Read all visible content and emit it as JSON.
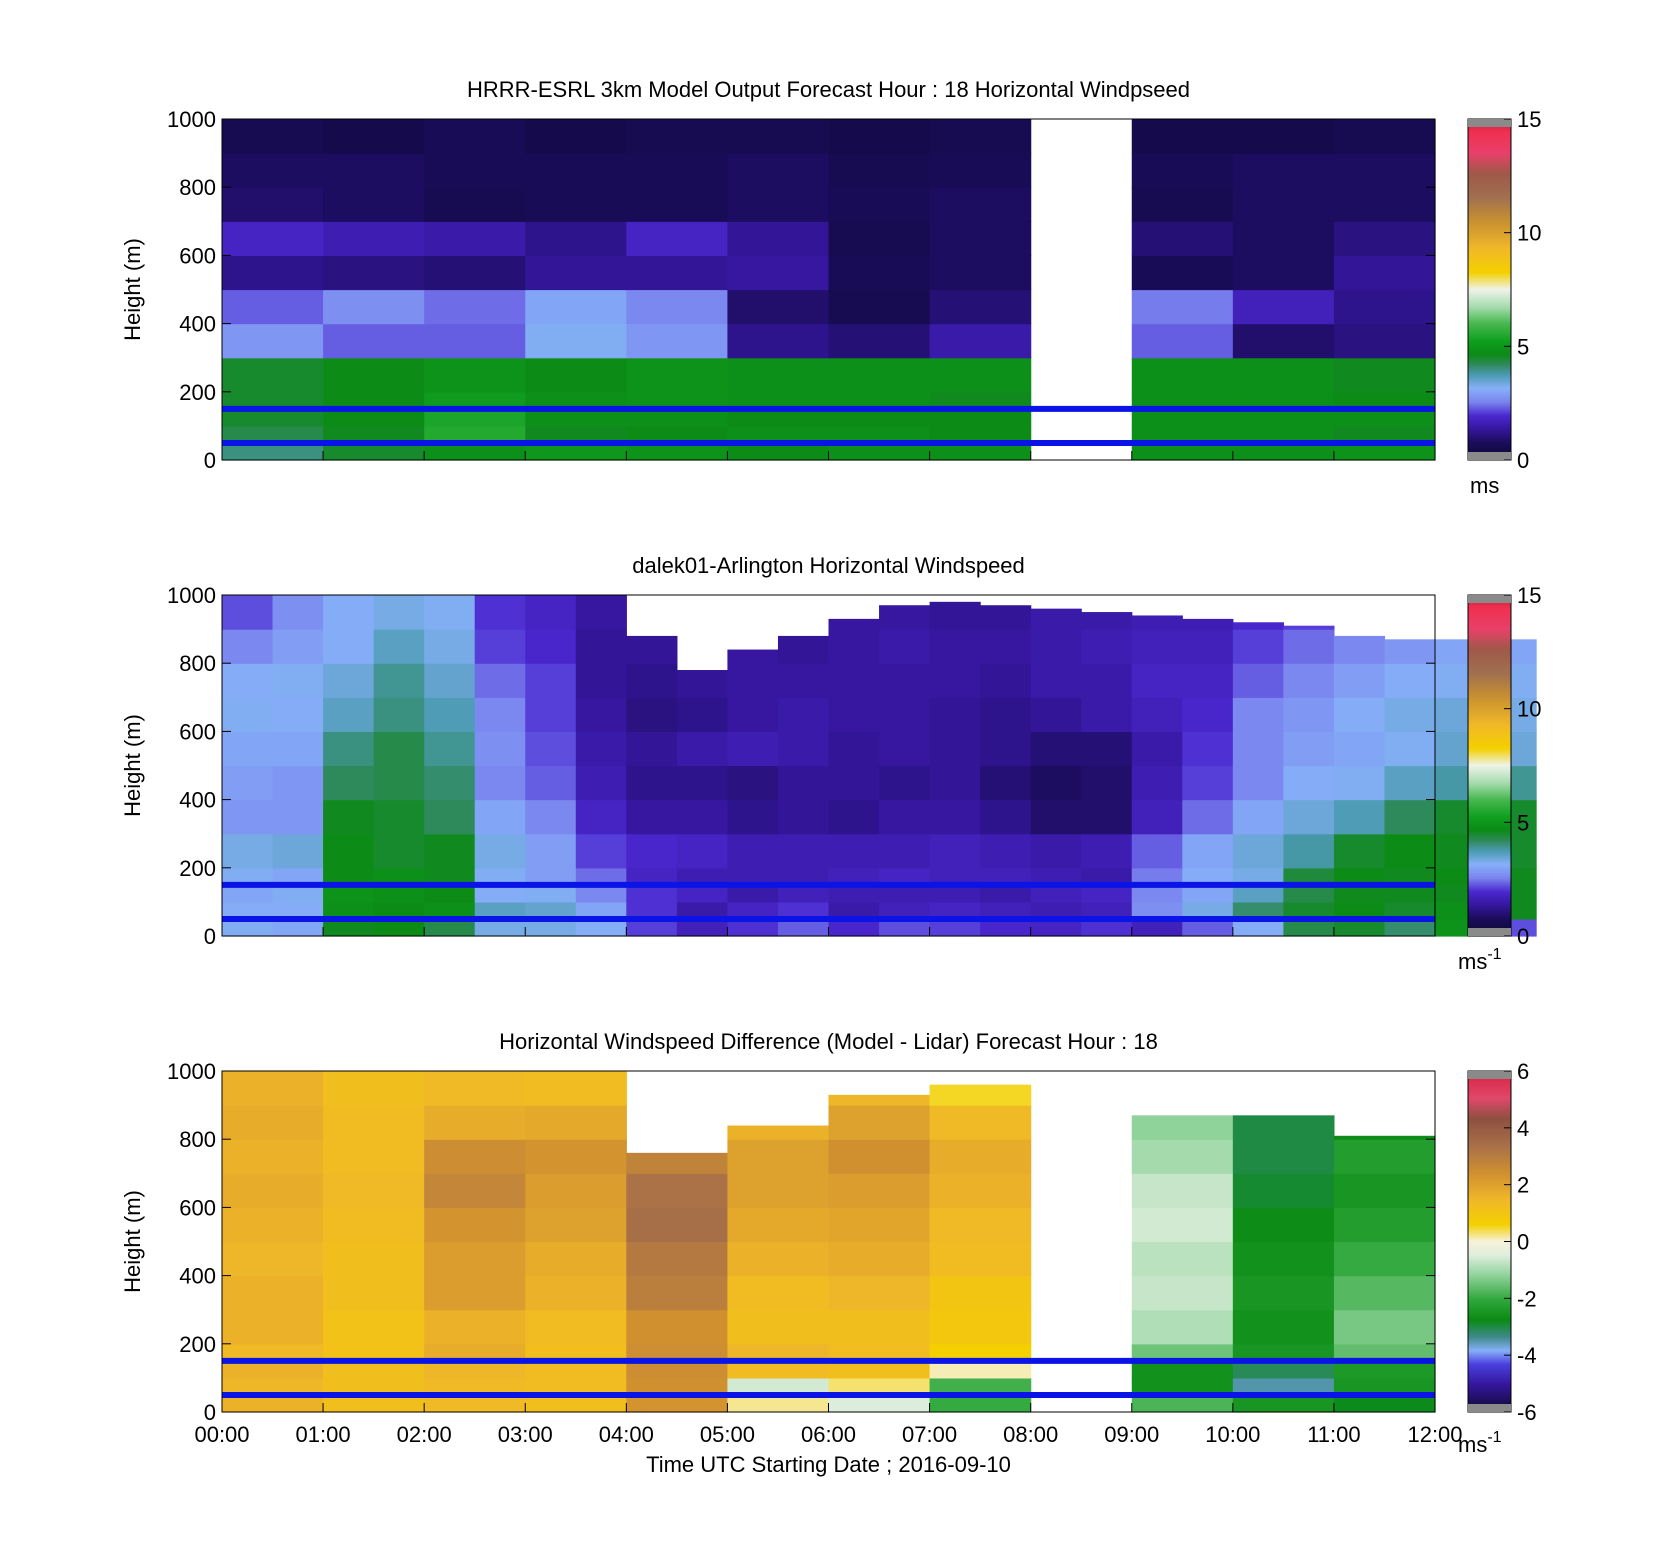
{
  "chart_data": [
    {
      "type": "heatmap",
      "title": "HRRR-ESRL 3km Model Output   Forecast Hour : 18 Horizontal Windpseed",
      "ylabel": "Height (m)",
      "xlabel": "",
      "ylim": [
        0,
        1000
      ],
      "yticks": [
        "0",
        "200",
        "400",
        "600",
        "800",
        "1000"
      ],
      "xlim_hours": [
        0,
        12
      ],
      "time_step_hours": 1,
      "height_levels_m": [
        0,
        50,
        100,
        150,
        200,
        300,
        400,
        500,
        600,
        700,
        800,
        900,
        1000
      ],
      "missing_columns": [
        8
      ],
      "values_ms": [
        [
          4.0,
          4.5,
          4.8,
          5.0,
          4.9,
          4.7,
          4.8,
          4.8,
          4.6,
          4.8,
          4.8,
          4.9
        ],
        [
          4.3,
          4.6,
          5.5,
          4.6,
          4.7,
          4.8,
          4.8,
          4.7,
          4.7,
          4.8,
          4.8,
          4.6
        ],
        [
          4.5,
          4.7,
          5.4,
          4.8,
          4.8,
          4.7,
          4.7,
          4.7,
          4.7,
          4.8,
          4.8,
          4.8
        ],
        [
          4.5,
          4.7,
          5.1,
          4.8,
          4.9,
          4.8,
          4.8,
          4.6,
          4.8,
          4.8,
          4.8,
          4.7
        ],
        [
          4.5,
          4.7,
          4.9,
          4.7,
          4.9,
          4.8,
          4.8,
          4.8,
          4.8,
          4.8,
          4.8,
          4.6
        ],
        [
          2.8,
          2.3,
          2.3,
          3.2,
          2.8,
          1.2,
          1.0,
          1.5,
          1.9,
          2.3,
          0.9,
          1.1
        ],
        [
          2.3,
          2.7,
          2.4,
          3.0,
          2.6,
          0.9,
          0.6,
          1.0,
          1.6,
          2.5,
          1.7,
          1.2
        ],
        [
          1.2,
          1.1,
          1.0,
          1.3,
          1.3,
          1.4,
          0.7,
          0.8,
          1.3,
          0.7,
          0.8,
          1.3
        ],
        [
          1.8,
          1.6,
          1.5,
          1.2,
          1.8,
          1.3,
          0.6,
          0.8,
          1.2,
          1.0,
          0.8,
          1.1
        ],
        [
          0.9,
          0.8,
          0.6,
          0.7,
          0.7,
          0.8,
          0.7,
          0.8,
          0.8,
          0.6,
          0.8,
          0.8
        ],
        [
          0.8,
          0.8,
          0.7,
          0.7,
          0.7,
          0.8,
          0.6,
          0.7,
          0.8,
          0.7,
          0.8,
          0.8
        ],
        [
          0.6,
          0.5,
          0.7,
          0.5,
          0.6,
          0.6,
          0.5,
          0.6,
          0.6,
          0.5,
          0.5,
          0.6
        ]
      ],
      "colorbar": {
        "min": 0,
        "max": 15,
        "ticks": [
          "0",
          "5",
          "10",
          "15"
        ],
        "unit": "ms"
      },
      "reference_lines_m": [
        50,
        150
      ],
      "reference_line_color": "#0a14e6"
    },
    {
      "type": "heatmap",
      "title": "dalek01-Arlington  Horizontal Windspeed",
      "ylabel": "Height (m)",
      "xlabel": "",
      "ylim": [
        0,
        1000
      ],
      "yticks": [
        "0",
        "200",
        "400",
        "600",
        "800",
        "1000"
      ],
      "xlim_hours": [
        0,
        12
      ],
      "time_step_hours": 0.5,
      "height_levels_m": [
        0,
        50,
        100,
        150,
        200,
        300,
        400,
        500,
        600,
        700,
        800,
        900,
        1000
      ],
      "top_of_data_m": [
        1000,
        1000,
        1000,
        1000,
        1000,
        1000,
        1000,
        1000,
        880,
        780,
        840,
        880,
        930,
        970,
        980,
        970,
        960,
        950,
        940,
        930,
        920,
        910,
        880,
        870,
        870,
        870
      ],
      "values_ms": [
        [
          3.2,
          3.0,
          4.6,
          4.7,
          4.3,
          3.3,
          3.3,
          3.1,
          2.1,
          1.7,
          2.0,
          2.3,
          1.9,
          2.2,
          2.1,
          1.9,
          1.8,
          2.0,
          1.7,
          2.3,
          3.1,
          4.3,
          4.5,
          4.1,
          4.9,
          2.2
        ],
        [
          3.1,
          3.1,
          4.8,
          4.7,
          4.8,
          3.6,
          3.5,
          3.0,
          2.0,
          1.5,
          1.8,
          2.0,
          1.5,
          1.7,
          1.8,
          1.7,
          1.6,
          1.7,
          2.7,
          3.3,
          4.1,
          4.5,
          4.7,
          4.5,
          4.8,
          4.6
        ],
        [
          3.0,
          3.2,
          4.9,
          4.8,
          4.7,
          3.1,
          3.2,
          2.6,
          2.0,
          1.8,
          1.5,
          1.7,
          1.6,
          1.6,
          1.6,
          1.5,
          1.7,
          1.8,
          2.6,
          3.0,
          3.6,
          4.3,
          4.6,
          4.6,
          4.6,
          4.6
        ],
        [
          3.2,
          3.0,
          4.7,
          4.8,
          4.6,
          3.2,
          2.9,
          2.4,
          1.8,
          1.6,
          1.6,
          1.6,
          1.7,
          1.8,
          1.7,
          1.7,
          1.6,
          1.5,
          2.5,
          3.1,
          3.3,
          4.4,
          4.7,
          4.6,
          4.7,
          4.6
        ],
        [
          3.3,
          3.4,
          4.7,
          4.5,
          4.6,
          3.3,
          2.9,
          2.1,
          1.9,
          1.8,
          1.6,
          1.6,
          1.6,
          1.6,
          1.7,
          1.6,
          1.5,
          1.6,
          2.3,
          3.0,
          3.4,
          3.8,
          4.5,
          4.7,
          4.6,
          4.5
        ],
        [
          2.8,
          2.8,
          4.6,
          4.5,
          4.2,
          3.0,
          2.6,
          1.8,
          1.4,
          1.4,
          1.2,
          1.3,
          1.2,
          1.4,
          1.4,
          1.2,
          0.9,
          0.9,
          1.7,
          2.4,
          3.0,
          3.4,
          3.7,
          4.2,
          4.5,
          4.5
        ],
        [
          2.9,
          2.8,
          4.2,
          4.3,
          4.1,
          2.6,
          2.3,
          1.6,
          1.2,
          1.2,
          1.1,
          1.3,
          1.3,
          1.2,
          1.3,
          1.0,
          0.8,
          0.9,
          1.6,
          2.1,
          2.6,
          3.1,
          3.2,
          3.6,
          3.8,
          3.9
        ],
        [
          3.0,
          3.0,
          4.0,
          4.3,
          3.9,
          2.7,
          2.2,
          1.5,
          1.3,
          1.5,
          1.6,
          1.5,
          1.3,
          1.4,
          1.3,
          1.2,
          1.0,
          1.0,
          1.5,
          2.0,
          2.6,
          2.9,
          3.0,
          3.2,
          3.5,
          3.4
        ],
        [
          3.2,
          3.1,
          3.6,
          4.0,
          3.7,
          2.6,
          2.1,
          1.4,
          1.1,
          1.2,
          1.4,
          1.5,
          1.4,
          1.4,
          1.3,
          1.2,
          1.3,
          1.5,
          1.7,
          1.9,
          2.6,
          2.8,
          3.1,
          3.3,
          3.4,
          3.3
        ],
        [
          3.1,
          3.2,
          3.4,
          3.9,
          3.5,
          2.4,
          2.1,
          1.3,
          1.2,
          1.3,
          1.4,
          1.4,
          1.4,
          1.4,
          1.4,
          1.3,
          1.5,
          1.5,
          1.8,
          1.8,
          2.3,
          2.6,
          2.9,
          3.1,
          3.2,
          3.2
        ],
        [
          2.6,
          2.9,
          3.1,
          3.6,
          3.3,
          2.1,
          1.9,
          1.3,
          1.3,
          1.4,
          1.4,
          1.3,
          1.4,
          1.5,
          1.4,
          1.4,
          1.5,
          1.6,
          1.7,
          1.7,
          2.1,
          2.4,
          2.6,
          2.8,
          3.0,
          3.0
        ],
        [
          2.2,
          2.7,
          3.1,
          3.3,
          3.2,
          2.0,
          1.8,
          1.4,
          1.3,
          1.3,
          1.3,
          1.3,
          1.4,
          1.4,
          1.3,
          1.3,
          1.5,
          1.5,
          1.6,
          1.6,
          1.9,
          2.1,
          2.3,
          2.4,
          2.6,
          2.7
        ]
      ],
      "colorbar": {
        "min": 0,
        "max": 15,
        "ticks": [
          "0",
          "5",
          "10",
          "15"
        ],
        "unit": "ms",
        "unit_exponent": "-1"
      },
      "reference_lines_m": [
        50,
        150
      ],
      "reference_line_color": "#0a14e6"
    },
    {
      "type": "heatmap",
      "title": "Horizontal Windspeed Difference (Model - Lidar) Forecast Hour : 18",
      "ylabel": "Height (m)",
      "xlabel": "Time UTC  Starting Date ; 2016-09-10",
      "ylim": [
        0,
        1000
      ],
      "yticks": [
        "0",
        "200",
        "400",
        "600",
        "800",
        "1000"
      ],
      "xticks": [
        "00:00",
        "01:00",
        "02:00",
        "03:00",
        "04:00",
        "05:00",
        "06:00",
        "07:00",
        "08:00",
        "09:00",
        "10:00",
        "11:00",
        "12:00"
      ],
      "xlim_hours": [
        0,
        12
      ],
      "time_step_hours": 1,
      "height_levels_m": [
        0,
        50,
        100,
        150,
        200,
        300,
        400,
        500,
        600,
        700,
        800,
        900,
        1000
      ],
      "missing_columns": [
        8
      ],
      "top_of_data_m": [
        1000,
        1000,
        1000,
        1000,
        760,
        840,
        930,
        960,
        0,
        870,
        870,
        810
      ],
      "values_ms": [
        [
          1.6,
          1.2,
          1.4,
          1.2,
          2.3,
          0.2,
          -0.5,
          -2.0,
          0,
          -1.8,
          -2.5,
          -2.8
        ],
        [
          1.5,
          1.2,
          1.4,
          1.3,
          2.4,
          -0.6,
          0.3,
          -1.9,
          0,
          -2.6,
          -3.5,
          -2.5
        ],
        [
          1.6,
          1.2,
          1.5,
          1.3,
          2.5,
          1.3,
          1.2,
          0.1,
          0,
          -2.6,
          -3.1,
          -2.4
        ],
        [
          1.4,
          1.1,
          1.7,
          1.2,
          2.5,
          1.5,
          1.3,
          0.6,
          0,
          -1.5,
          -2.5,
          -1.6
        ],
        [
          1.6,
          1.1,
          1.6,
          1.3,
          2.4,
          1.2,
          1.2,
          0.9,
          0,
          -0.9,
          -2.6,
          -1.4
        ],
        [
          1.6,
          1.2,
          2.1,
          1.6,
          2.9,
          1.3,
          1.5,
          1.0,
          0,
          -0.7,
          -2.5,
          -1.7
        ],
        [
          1.5,
          1.2,
          2.1,
          1.7,
          3.1,
          1.6,
          1.7,
          1.3,
          0,
          -0.8,
          -2.6,
          -2.0
        ],
        [
          1.6,
          1.3,
          2.3,
          2.0,
          3.4,
          1.8,
          1.9,
          1.4,
          0,
          -0.6,
          -2.7,
          -2.3
        ],
        [
          1.7,
          1.4,
          2.7,
          2.1,
          3.3,
          2.0,
          2.1,
          1.6,
          0,
          -0.7,
          -2.9,
          -2.5
        ],
        [
          1.6,
          1.3,
          2.5,
          2.3,
          2.8,
          2.0,
          2.4,
          1.7,
          0,
          -1.0,
          -3.0,
          -2.3
        ],
        [
          1.7,
          1.3,
          1.7,
          1.8,
          2.1,
          1.6,
          2.0,
          1.4,
          0,
          -1.2,
          -3.0,
          -2.7
        ],
        [
          1.6,
          1.2,
          1.4,
          1.3,
          2.0,
          1.3,
          1.5,
          0.5,
          0,
          -1.5,
          -2.9,
          -2.7
        ]
      ],
      "colorbar": {
        "min": -6,
        "max": 6,
        "ticks": [
          "-6",
          "-4",
          "-2",
          "0",
          "2",
          "4",
          "6"
        ],
        "unit": "ms",
        "unit_exponent": "-1"
      },
      "reference_lines_m": [
        50,
        150
      ],
      "reference_line_color": "#0a14e6"
    }
  ]
}
